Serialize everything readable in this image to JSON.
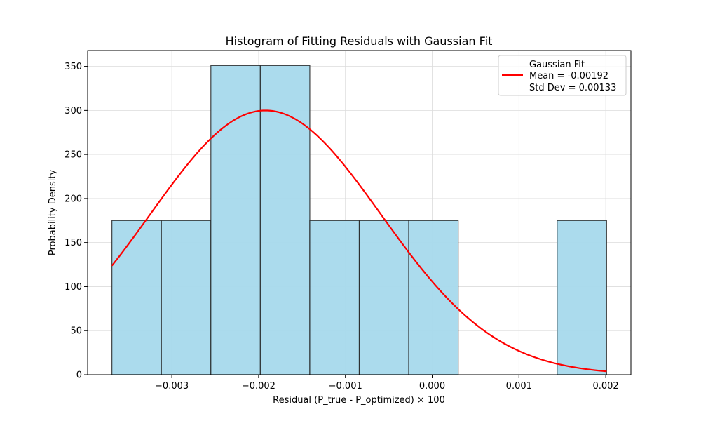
{
  "chart_data": {
    "type": "bar",
    "title": "Histogram of Fitting Residuals with Gaussian Fit",
    "xlabel": "Residual (P_true - P_optimized) × 100",
    "ylabel": "Probability Density",
    "xlim": [
      -0.00397,
      0.00229
    ],
    "ylim": [
      0,
      368
    ],
    "xticks": [
      -0.003,
      -0.002,
      -0.001,
      0.0,
      0.001,
      0.002
    ],
    "xtick_labels": [
      "−0.003",
      "−0.002",
      "−0.001",
      "0.000",
      "0.001",
      "0.002"
    ],
    "yticks": [
      0,
      50,
      100,
      150,
      200,
      250,
      300,
      350
    ],
    "ytick_labels": [
      "0",
      "50",
      "100",
      "150",
      "200",
      "250",
      "300",
      "350"
    ],
    "grid": true,
    "bins": [
      {
        "x0": -0.00369,
        "x1": -0.00312,
        "density": 175
      },
      {
        "x0": -0.00312,
        "x1": -0.00255,
        "density": 175
      },
      {
        "x0": -0.00255,
        "x1": -0.00198,
        "density": 351
      },
      {
        "x0": -0.00198,
        "x1": -0.00141,
        "density": 351
      },
      {
        "x0": -0.00141,
        "x1": -0.00084,
        "density": 175
      },
      {
        "x0": -0.00084,
        "x1": -0.00027,
        "density": 175
      },
      {
        "x0": -0.00027,
        "x1": 0.0003,
        "density": 175
      },
      {
        "x0": 0.0003,
        "x1": 0.00087,
        "density": 0
      },
      {
        "x0": 0.00087,
        "x1": 0.00144,
        "density": 0
      },
      {
        "x0": 0.00144,
        "x1": 0.00201,
        "density": 175
      }
    ],
    "bar_color": "#a6d9ec",
    "series": [
      {
        "name": "Gaussian Fit",
        "type": "line",
        "mean": -0.00192,
        "std": 0.00133,
        "x_range": [
          -0.00369,
          0.00201
        ],
        "color": "#ff0000"
      }
    ],
    "legend": {
      "position": "top-right",
      "lines": [
        "Gaussian Fit",
        "Mean = -0.00192",
        "Std Dev = 0.00133"
      ]
    }
  }
}
